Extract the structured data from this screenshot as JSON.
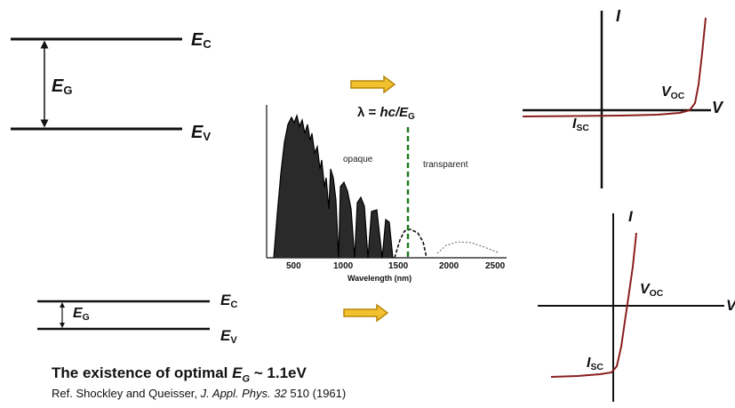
{
  "band_diagram_large": {
    "ec_label": "E",
    "ec_sub": "C",
    "ev_label": "E",
    "ev_sub": "V",
    "eg_label": "E",
    "eg_sub": "G"
  },
  "band_diagram_small": {
    "ec_label": "E",
    "ec_sub": "C",
    "ev_label": "E",
    "ev_sub": "V",
    "eg_label": "E",
    "eg_sub": "G"
  },
  "spectrum": {
    "cutoff_label_prefix": "λ = ",
    "cutoff_label_formula": "hc/E",
    "cutoff_label_sub": "G",
    "region_opaque": "opaque",
    "region_transparent": "transparent",
    "xlabel": "Wavelength (nm)",
    "xticks": [
      "500",
      "1000",
      "1500",
      "2000",
      "2500"
    ]
  },
  "iv_large": {
    "i_axis": "I",
    "v_axis": "V",
    "voc_label": "V",
    "voc_sub": "OC",
    "isc_label": "I",
    "isc_sub": "SC"
  },
  "iv_small": {
    "i_axis": "I",
    "v_axis": "V",
    "voc_label": "V",
    "voc_sub": "OC",
    "isc_label": "I",
    "isc_sub": "SC"
  },
  "colors": {
    "arrow_fill": "#f2c12e",
    "arrow_stroke": "#b8860b",
    "iv_curve": "#8b1e1e",
    "cutoff_line": "#1f7a1f"
  },
  "footer": {
    "title_prefix": "The existence of optimal ",
    "title_var": "E",
    "title_var_sub": "G",
    "title_suffix": " ~ 1.1eV",
    "ref_prefix": "Ref. Shockley and Queisser, ",
    "ref_journal": "J. Appl. Phys. 32",
    "ref_suffix": " 510 (1961)"
  }
}
